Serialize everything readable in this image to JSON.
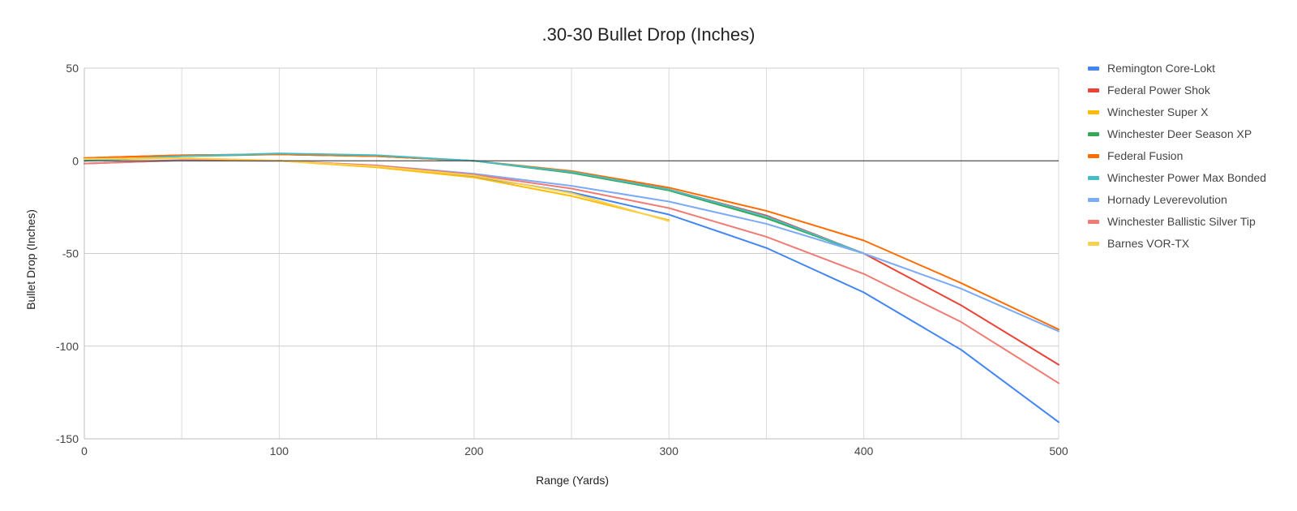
{
  "chart_data": {
    "type": "line",
    "title": ".30-30 Bullet Drop (Inches)",
    "xlabel": "Range (Yards)",
    "ylabel": "Bullet Drop (Inches)",
    "xlim": [
      0,
      500
    ],
    "ylim": [
      -150,
      50
    ],
    "x_ticks": [
      0,
      100,
      200,
      300,
      400,
      500
    ],
    "y_ticks": [
      50,
      0,
      -50,
      -100,
      -150
    ],
    "x_gridlines": [
      0,
      50,
      100,
      150,
      200,
      250,
      300,
      350,
      400,
      450,
      500
    ],
    "zero_line": true,
    "grid": true,
    "legend_position": "right",
    "series": [
      {
        "name": "Remington Core-Lokt",
        "color": "#4285f4",
        "x": [
          0,
          50,
          100,
          150,
          200,
          250,
          300,
          350,
          400,
          450,
          500
        ],
        "y": [
          -1.5,
          0.2,
          0,
          -3,
          -8.5,
          -17,
          -29,
          -47,
          -71,
          -102,
          -141
        ]
      },
      {
        "name": "Federal Power Shok",
        "color": "#ea4335",
        "x": [
          0,
          50,
          100,
          150,
          200,
          250,
          300,
          350,
          400,
          450,
          500
        ],
        "y": [
          1.5,
          3,
          3.5,
          2.5,
          0,
          -6,
          -15.5,
          -29.5,
          -50,
          -78,
          -110
        ]
      },
      {
        "name": "Winchester Super X",
        "color": "#fbbc04",
        "x": [
          0,
          50,
          100,
          150,
          200,
          250,
          300
        ],
        "y": [
          0.5,
          1.5,
          0,
          -3.5,
          -9,
          -19,
          -32
        ]
      },
      {
        "name": "Winchester Deer Season XP",
        "color": "#34a853",
        "x": [
          0,
          50,
          100,
          150,
          200,
          250,
          300,
          350,
          400
        ],
        "y": [
          0,
          2.5,
          3.5,
          2.5,
          0,
          -6.5,
          -16,
          -31,
          -50
        ]
      },
      {
        "name": "Federal Fusion",
        "color": "#ff6d01",
        "x": [
          0,
          50,
          100,
          150,
          200,
          250,
          300,
          350,
          400,
          450,
          500
        ],
        "y": [
          1.5,
          3,
          3.5,
          2.5,
          0,
          -5.5,
          -14.5,
          -27,
          -43,
          -66,
          -91
        ]
      },
      {
        "name": "Winchester Power Max Bonded",
        "color": "#46bdc6",
        "x": [
          0,
          50,
          100,
          150,
          200,
          250,
          300,
          350,
          400
        ],
        "y": [
          0,
          2.5,
          4,
          3,
          0,
          -6,
          -15.5,
          -30,
          -50
        ]
      },
      {
        "name": "Hornady Leverevolution",
        "color": "#7baaf7",
        "x": [
          0,
          50,
          100,
          150,
          200,
          250,
          300,
          350,
          400,
          450,
          500
        ],
        "y": [
          -1.5,
          0.5,
          0,
          -2.5,
          -7,
          -13.5,
          -22,
          -34,
          -50,
          -69,
          -92
        ]
      },
      {
        "name": "Winchester Ballistic Silver Tip",
        "color": "#f07b72",
        "x": [
          0,
          50,
          100,
          150,
          200,
          250,
          300,
          350,
          400,
          450,
          500
        ],
        "y": [
          -1.5,
          0.3,
          0,
          -2.5,
          -7.5,
          -15,
          -25.5,
          -41,
          -61,
          -87,
          -120
        ]
      },
      {
        "name": "Barnes VOR-TX",
        "color": "#fcd04f",
        "x": [
          0,
          50,
          100,
          150,
          200,
          250,
          300
        ],
        "y": [
          1,
          1.5,
          0,
          -3,
          -8,
          -17.5,
          -32.5
        ]
      }
    ]
  }
}
